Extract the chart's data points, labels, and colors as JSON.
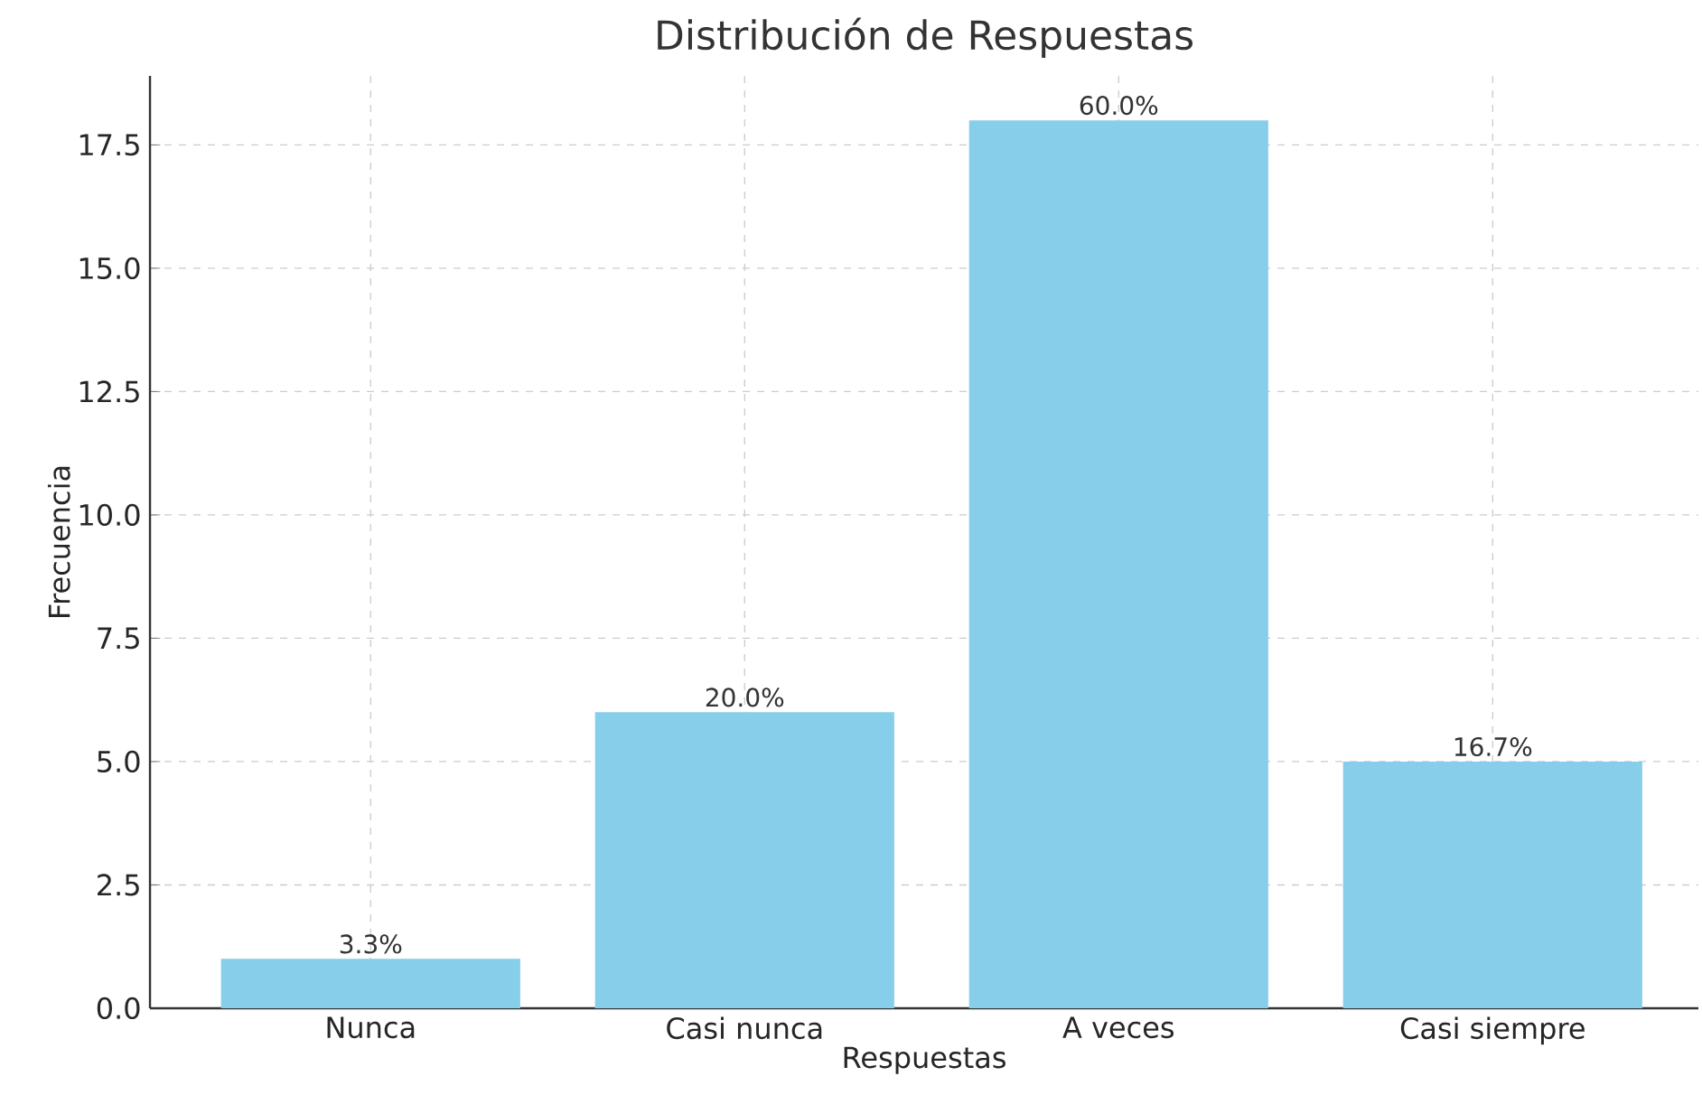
{
  "chart_data": {
    "type": "bar",
    "title": "Distribución de Respuestas",
    "xlabel": "Respuestas",
    "ylabel": "Frecuencia",
    "categories": [
      "Nunca",
      "Casi nunca",
      "A veces",
      "Casi siempre"
    ],
    "values": [
      1,
      6,
      18,
      5
    ],
    "annotations": [
      {
        "text": "3.3%",
        "x": "Nunca",
        "y": 1
      },
      {
        "text": "20.0%",
        "x": "Casi nunca",
        "y": 6
      },
      {
        "text": "60.0%",
        "x": "A veces",
        "y": 18
      },
      {
        "text": "16.7%",
        "x": "Casi siempre",
        "y": 5
      }
    ],
    "color": "#87ceeb",
    "ylim": [
      0,
      18.9
    ],
    "yticks": [
      {
        "value": 0,
        "label": "0.0"
      },
      2.5,
      {
        "value": 5,
        "label": "5.0"
      },
      7.5,
      {
        "value": 10,
        "label": "10.0"
      },
      12.5,
      {
        "value": 15,
        "label": "15.0"
      },
      17.5
    ],
    "grid": true
  }
}
